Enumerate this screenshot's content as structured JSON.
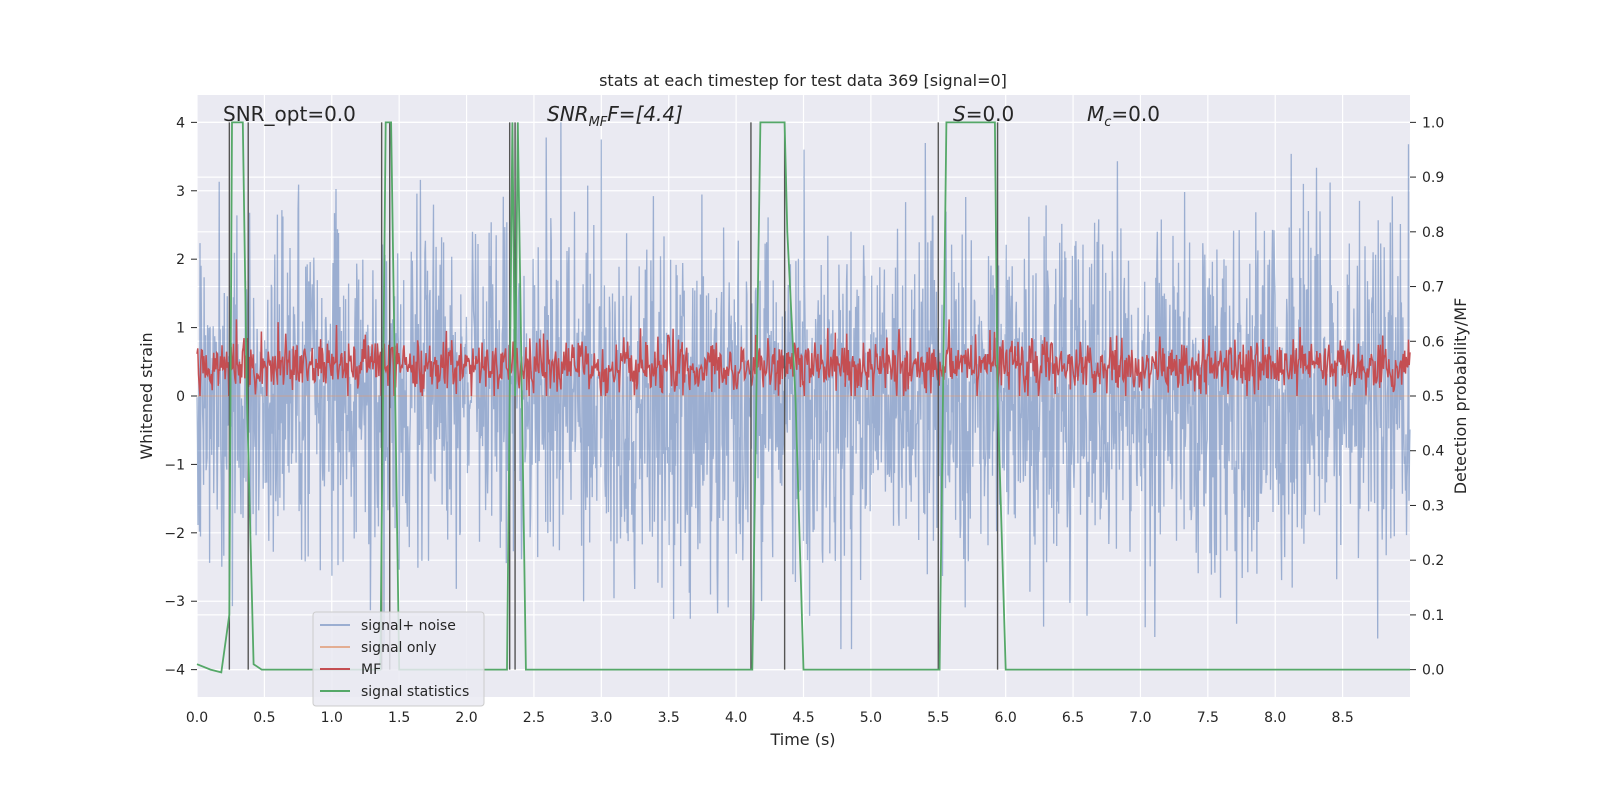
{
  "chart_data": {
    "type": "line",
    "title": "stats at each timestep for test data 369 [signal=0]",
    "xlabel": "Time (s)",
    "ylabel_left": "Whitened strain",
    "ylabel_right": "Detection probability/MF",
    "xlim": [
      0.0,
      9.0
    ],
    "ylim_left": [
      -4.4,
      4.4
    ],
    "ylim_right": [
      -0.05,
      1.05
    ],
    "x_ticks": [
      "0.0",
      "0.5",
      "1.0",
      "1.5",
      "2.0",
      "2.5",
      "3.0",
      "3.5",
      "4.0",
      "4.5",
      "5.0",
      "5.5",
      "6.0",
      "6.5",
      "7.0",
      "7.5",
      "8.0",
      "8.5"
    ],
    "y_ticks_left": [
      "−4",
      "−3",
      "−2",
      "−1",
      "0",
      "1",
      "2",
      "3",
      "4"
    ],
    "y_ticks_right": [
      "0.0",
      "0.1",
      "0.2",
      "0.3",
      "0.4",
      "0.5",
      "0.6",
      "0.7",
      "0.8",
      "0.9",
      "1.0"
    ],
    "grid": true,
    "legend_position": "lower-left",
    "annotations": {
      "snr_opt": "SNR_opt=0.0",
      "snr_mf_main": "SNR",
      "snr_mf_sub": "MF",
      "snr_mf_rest": "F=[4.4]",
      "s_main": "S",
      "s_rest": "=0.0",
      "mc_main": "M",
      "mc_sub": "c",
      "mc_rest": "=0.0"
    },
    "series": [
      {
        "name": "signal+ noise",
        "color": "#4c72b0",
        "axis": "left",
        "approx_range": [
          -3.7,
          4.0
        ]
      },
      {
        "name": "signal only",
        "color": "#dd8452",
        "axis": "left",
        "values": "zero"
      },
      {
        "name": "MF",
        "color": "#c44e52",
        "axis": "right",
        "approx_range": [
          0.5,
          0.64
        ]
      },
      {
        "name": "signal statistics",
        "color": "#55a868",
        "axis": "right",
        "x": [
          0.0,
          0.1,
          0.18,
          0.24,
          0.26,
          0.34,
          0.37,
          0.42,
          0.48,
          1.36,
          1.4,
          1.44,
          1.5,
          2.3,
          2.34,
          2.36,
          2.38,
          2.44,
          4.12,
          4.18,
          4.36,
          4.38,
          4.44,
          4.5,
          5.51,
          5.56,
          5.92,
          5.94,
          6.0,
          9.0
        ],
        "values": [
          0.01,
          0.0,
          -0.005,
          0.1,
          1.0,
          1.0,
          0.5,
          0.01,
          0.0,
          0.0,
          1.0,
          1.0,
          0.0,
          0.0,
          1.0,
          0.5,
          1.0,
          0.0,
          0.0,
          1.0,
          1.0,
          0.8,
          0.5,
          0.0,
          0.0,
          1.0,
          1.0,
          0.5,
          0.0,
          0.0
        ]
      }
    ],
    "vertical_markers_x": [
      0.24,
      0.38,
      1.37,
      1.43,
      2.32,
      2.36,
      4.11,
      4.36,
      5.5,
      5.94
    ]
  }
}
